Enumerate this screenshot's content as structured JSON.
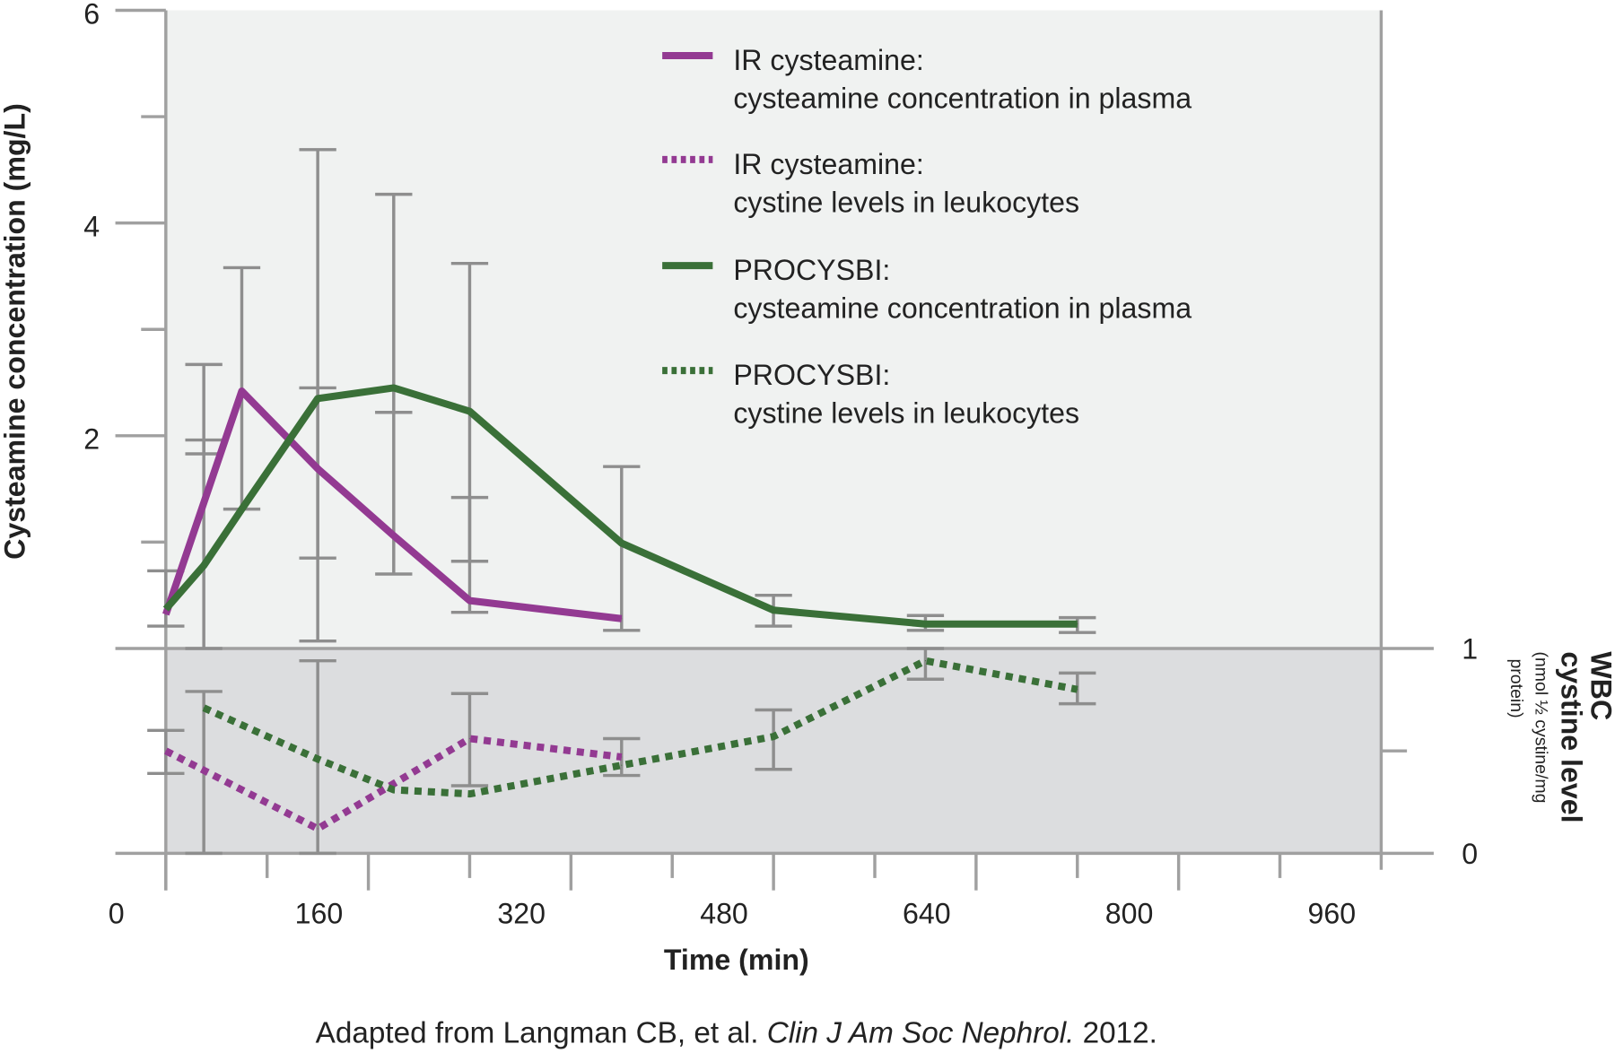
{
  "chart_data": {
    "type": "line",
    "xlabel": "Time (min)",
    "ylabel_left": "Cysteamine concentration (mg/L)",
    "ylabel_right": [
      "WBC",
      "cystine level",
      "(nmol ½ cystine/mg",
      "protein)"
    ],
    "xlim": [
      0,
      960
    ],
    "x_ticks": [
      0,
      160,
      320,
      480,
      640,
      800,
      960
    ],
    "ylim_left": [
      0,
      6
    ],
    "y_ticks_left": [
      2,
      4,
      6
    ],
    "ylim_right": [
      0,
      1
    ],
    "y_ticks_right": [
      0,
      1
    ],
    "legend_placement": "top-right",
    "colors": {
      "ir": "#933a92",
      "procysbi": "#3a7038",
      "axis": "#a0a0a0",
      "errorbar": "#8e8e8e",
      "upper_bg": "#f0f2f1",
      "lower_bg": "#dcdddf"
    },
    "series": [
      {
        "name": "IR cysteamine: cysteamine concentration in plasma",
        "legend": [
          "IR cysteamine:",
          "cysteamine concentration in plasma"
        ],
        "color": "#933a92",
        "style": "solid",
        "axis": "left",
        "x": [
          0,
          60,
          120,
          180,
          240,
          360
        ],
        "y": [
          0.32,
          2.42,
          1.69,
          1.06,
          0.45,
          0.28
        ]
      },
      {
        "name": "IR cysteamine: cystine levels in leukocytes",
        "legend": [
          "IR cysteamine:",
          "cystine levels in leukocytes"
        ],
        "color": "#933a92",
        "style": "dotted",
        "axis": "right",
        "x": [
          0,
          120,
          240,
          360
        ],
        "y": [
          0.5,
          0.12,
          0.56,
          0.47
        ]
      },
      {
        "name": "PROCYSBI: cysteamine concentration in plasma",
        "legend": [
          "PROCYSBI:",
          "cysteamine concentration in plasma"
        ],
        "color": "#3a7038",
        "style": "solid",
        "axis": "left",
        "x": [
          0,
          30,
          60,
          120,
          180,
          240,
          360,
          480,
          600,
          720
        ],
        "y": [
          0.37,
          0.78,
          1.31,
          2.35,
          2.45,
          2.23,
          0.99,
          0.36,
          0.23,
          0.23
        ]
      },
      {
        "name": "PROCYSBI: cystine levels in leukocytes",
        "legend": [
          "PROCYSBI:",
          "cystine levels in leukocytes"
        ],
        "color": "#3a7038",
        "style": "dotted",
        "axis": "right",
        "x": [
          30,
          120,
          180,
          240,
          360,
          480,
          600,
          720
        ],
        "y": [
          0.71,
          0.46,
          0.31,
          0.29,
          0.43,
          0.57,
          0.94,
          0.8
        ]
      }
    ],
    "error_bars": [
      {
        "x": 0,
        "axis": "left",
        "low": 0.21,
        "high": 0.73
      },
      {
        "x": 30,
        "axis": "left",
        "low": 0.0,
        "high": 2.67
      },
      {
        "x": 30,
        "axis": "left",
        "low": 1.83,
        "high": 1.96
      },
      {
        "x": 60,
        "axis": "left",
        "low": 1.31,
        "high": 3.58
      },
      {
        "x": 120,
        "axis": "left",
        "low": 0.07,
        "high": 4.69
      },
      {
        "x": 120,
        "axis": "left",
        "low": 0.85,
        "high": 2.45
      },
      {
        "x": 180,
        "axis": "left",
        "low": 0.7,
        "high": 4.27
      },
      {
        "x": 180,
        "axis": "left",
        "low": 2.22,
        "high": 2.22
      },
      {
        "x": 240,
        "axis": "left",
        "low": 0.34,
        "high": 3.62
      },
      {
        "x": 240,
        "axis": "left",
        "low": 0.82,
        "high": 1.42
      },
      {
        "x": 360,
        "axis": "left",
        "low": 0.17,
        "high": 1.71
      },
      {
        "x": 480,
        "axis": "left",
        "low": 0.21,
        "high": 0.5
      },
      {
        "x": 600,
        "axis": "left",
        "low": 0.17,
        "high": 0.31
      },
      {
        "x": 720,
        "axis": "left",
        "low": 0.15,
        "high": 0.29
      },
      {
        "x": 0,
        "axis": "right",
        "low": 0.39,
        "high": 0.6
      },
      {
        "x": 30,
        "axis": "right",
        "low": 0.0,
        "high": 0.79
      },
      {
        "x": 120,
        "axis": "right",
        "low": 0.0,
        "high": 0.94
      },
      {
        "x": 240,
        "axis": "right",
        "low": 0.33,
        "high": 0.78
      },
      {
        "x": 360,
        "axis": "right",
        "low": 0.38,
        "high": 0.56
      },
      {
        "x": 480,
        "axis": "right",
        "low": 0.41,
        "high": 0.7
      },
      {
        "x": 600,
        "axis": "right",
        "low": 0.85,
        "high": 1.0
      },
      {
        "x": 720,
        "axis": "right",
        "low": 0.73,
        "high": 0.88
      }
    ]
  },
  "caption": {
    "prefix": "Adapted from Langman CB, et al. ",
    "journal": "Clin J Am Soc Nephrol.",
    "suffix": " 2012."
  }
}
